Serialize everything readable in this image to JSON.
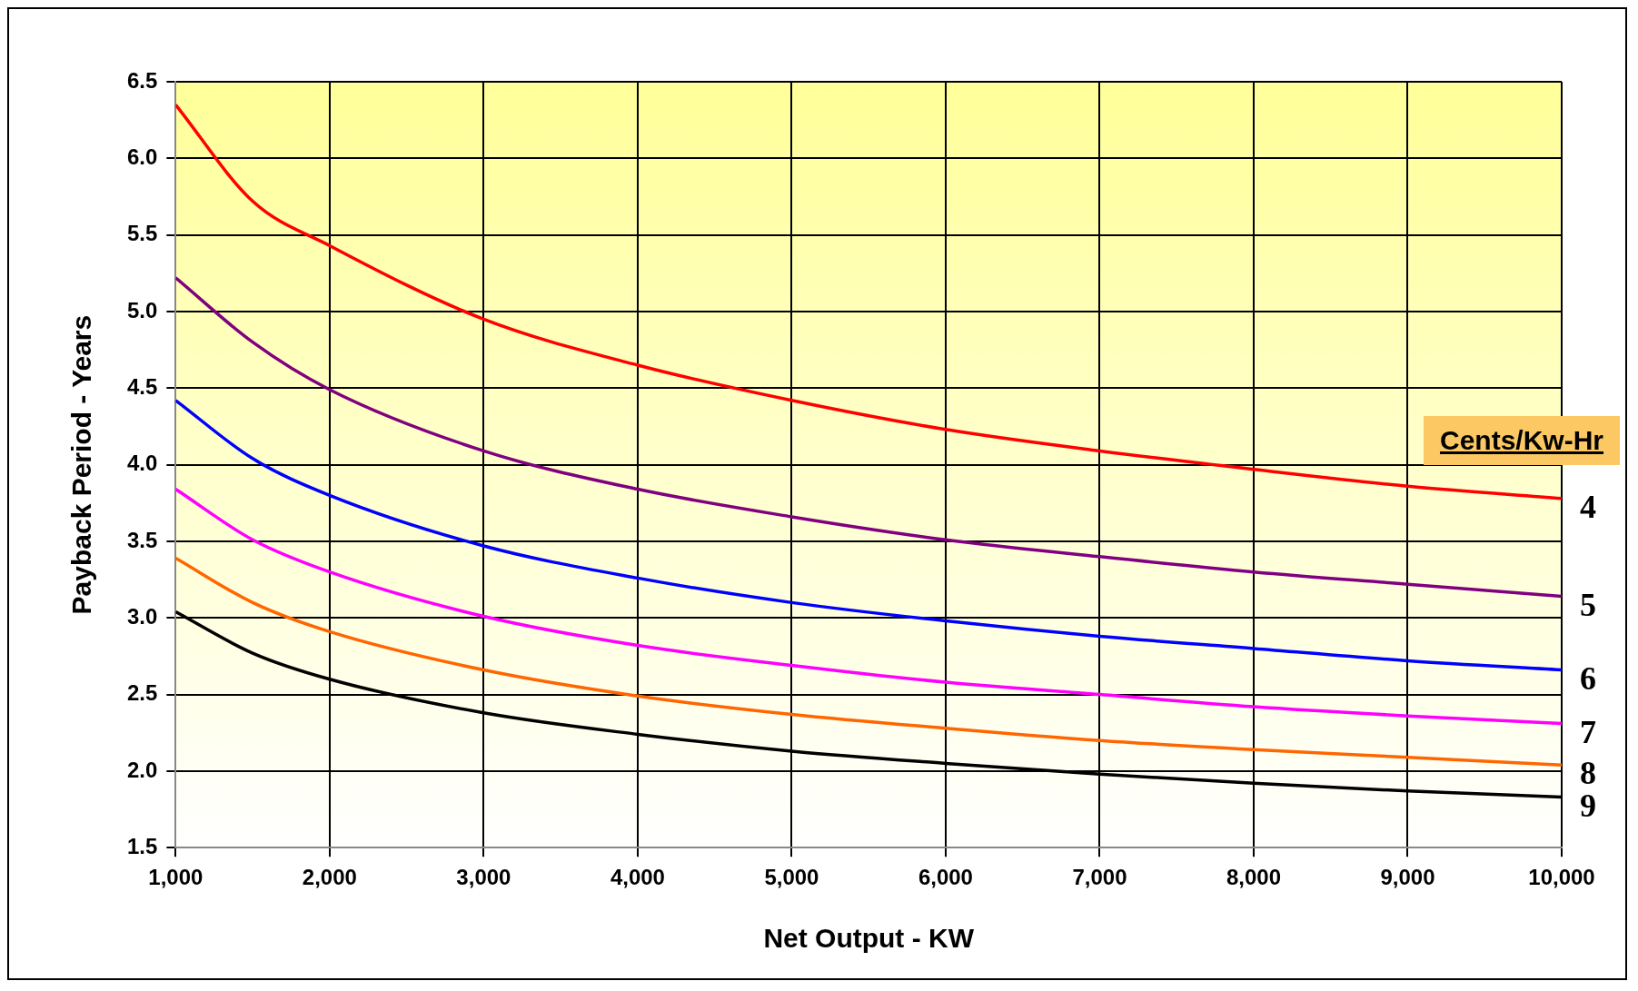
{
  "chart_data": {
    "type": "line",
    "xlabel": "Net Output - KW",
    "ylabel": "Payback Period - Years",
    "legend_title": "Cents/Kw-Hr",
    "x": [
      1000,
      1500,
      2000,
      3000,
      4000,
      5000,
      6000,
      7000,
      8000,
      9000,
      10000
    ],
    "series": [
      {
        "name": "4",
        "color": "#ff0000",
        "values": [
          6.35,
          5.72,
          5.43,
          4.95,
          4.65,
          4.42,
          4.23,
          4.09,
          3.97,
          3.86,
          3.78
        ]
      },
      {
        "name": "5",
        "color": "#800080",
        "values": [
          5.22,
          4.8,
          4.49,
          4.09,
          3.84,
          3.66,
          3.51,
          3.4,
          3.3,
          3.22,
          3.14
        ]
      },
      {
        "name": "6",
        "color": "#0000ff",
        "values": [
          4.42,
          4.04,
          3.8,
          3.47,
          3.26,
          3.1,
          2.98,
          2.88,
          2.8,
          2.72,
          2.66
        ]
      },
      {
        "name": "7",
        "color": "#ff00ff",
        "values": [
          3.84,
          3.51,
          3.3,
          3.01,
          2.82,
          2.69,
          2.58,
          2.5,
          2.42,
          2.36,
          2.31
        ]
      },
      {
        "name": "8",
        "color": "#ff6600",
        "values": [
          3.39,
          3.1,
          2.91,
          2.66,
          2.49,
          2.37,
          2.28,
          2.2,
          2.14,
          2.09,
          2.04
        ]
      },
      {
        "name": "9",
        "color": "#000000",
        "values": [
          3.04,
          2.77,
          2.6,
          2.38,
          2.24,
          2.13,
          2.05,
          1.98,
          1.92,
          1.87,
          1.83
        ]
      }
    ],
    "xlim": [
      1000,
      10000
    ],
    "xticks": [
      {
        "value": 1000,
        "label": "1,000"
      },
      {
        "value": 2000,
        "label": "2,000"
      },
      {
        "value": 3000,
        "label": "3,000"
      },
      {
        "value": 4000,
        "label": "4,000"
      },
      {
        "value": 5000,
        "label": "5,000"
      },
      {
        "value": 6000,
        "label": "6,000"
      },
      {
        "value": 7000,
        "label": "7,000"
      },
      {
        "value": 8000,
        "label": "8,000"
      },
      {
        "value": 9000,
        "label": "9,000"
      },
      {
        "value": 10000,
        "label": "10,000"
      }
    ],
    "ylim": [
      1.5,
      6.5
    ],
    "yticks": [
      {
        "value": 1.5,
        "label": "1.5"
      },
      {
        "value": 2,
        "label": "2.0"
      },
      {
        "value": 2.5,
        "label": "2.5"
      },
      {
        "value": 3,
        "label": "3.0"
      },
      {
        "value": 3.5,
        "label": "3.5"
      },
      {
        "value": 4,
        "label": "4.0"
      },
      {
        "value": 4.5,
        "label": "4.5"
      },
      {
        "value": 5,
        "label": "5.0"
      },
      {
        "value": 5.5,
        "label": "5.5"
      },
      {
        "value": 6,
        "label": "6.0"
      },
      {
        "value": 6.5,
        "label": "6.5"
      }
    ],
    "grid": true,
    "legend": false,
    "marker": "none",
    "line_style": "solid"
  }
}
